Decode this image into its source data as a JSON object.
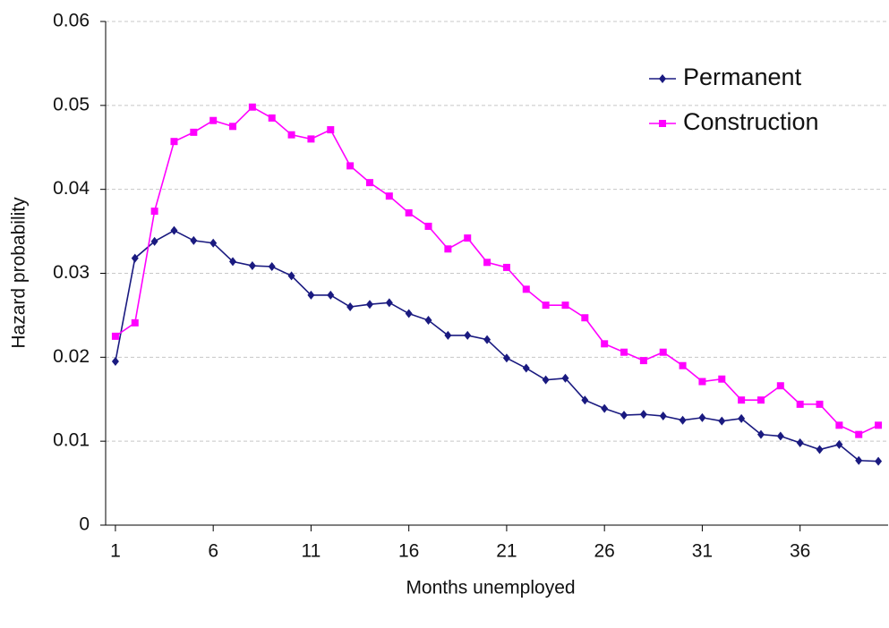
{
  "chart_data": {
    "type": "line",
    "xlabel": "Months unemployed",
    "ylabel": "Hazard probability",
    "x": [
      1,
      2,
      3,
      4,
      5,
      6,
      7,
      8,
      9,
      10,
      11,
      12,
      13,
      14,
      15,
      16,
      17,
      18,
      19,
      20,
      21,
      22,
      23,
      24,
      25,
      26,
      27,
      28,
      29,
      30,
      31,
      32,
      33,
      34,
      35,
      36,
      37,
      38,
      39,
      40
    ],
    "series": [
      {
        "name": "Permanent",
        "color": "#1a1a80",
        "marker": "diamond",
        "values": [
          0.0195,
          0.0318,
          0.0338,
          0.0351,
          0.0339,
          0.0336,
          0.0314,
          0.0309,
          0.0308,
          0.0297,
          0.0274,
          0.0274,
          0.026,
          0.0263,
          0.0265,
          0.0252,
          0.0244,
          0.0226,
          0.0226,
          0.0221,
          0.0199,
          0.0187,
          0.0173,
          0.0175,
          0.0149,
          0.0139,
          0.0131,
          0.0132,
          0.013,
          0.0125,
          0.0128,
          0.0124,
          0.0127,
          0.0108,
          0.0106,
          0.0098,
          0.009,
          0.0096,
          0.0077,
          0.0076
        ]
      },
      {
        "name": "Construction",
        "color": "#ff00ff",
        "marker": "square",
        "values": [
          0.0225,
          0.0241,
          0.0374,
          0.0457,
          0.0468,
          0.0482,
          0.0475,
          0.0498,
          0.0485,
          0.0465,
          0.046,
          0.0471,
          0.0428,
          0.0408,
          0.0392,
          0.0372,
          0.0356,
          0.0329,
          0.0342,
          0.0313,
          0.0307,
          0.0281,
          0.0262,
          0.0262,
          0.0247,
          0.0216,
          0.0206,
          0.0196,
          0.0206,
          0.019,
          0.0171,
          0.0174,
          0.0149,
          0.0149,
          0.0166,
          0.0144,
          0.0144,
          0.0119,
          0.0108,
          0.0119
        ]
      }
    ],
    "xlim": [
      0.5,
      40.5
    ],
    "xticks": [
      1,
      6,
      11,
      16,
      21,
      26,
      31,
      36
    ],
    "ylim": [
      0,
      0.06
    ],
    "yticks": [
      0,
      0.01,
      0.02,
      0.03,
      0.04,
      0.05,
      0.06
    ],
    "grid": true,
    "legend": "upper right"
  }
}
